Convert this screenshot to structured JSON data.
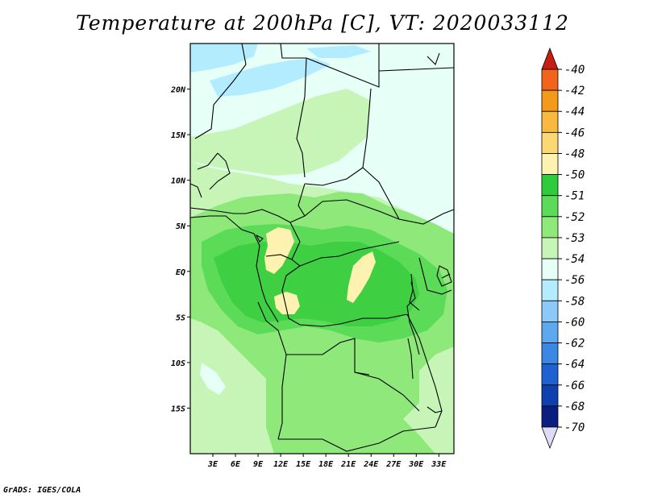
{
  "title": "Temperature at 200hPa [C], VT: 2020033112",
  "credit": "GrADS: IGES/COLA",
  "lat_labels": [
    "20N",
    "15N",
    "10N",
    "5N",
    "EQ",
    "5S",
    "10S",
    "15S"
  ],
  "lat_values": [
    20,
    15,
    10,
    5,
    0,
    -5,
    -10,
    -15
  ],
  "lon_labels": [
    "3E",
    "6E",
    "9E",
    "12E",
    "15E",
    "18E",
    "21E",
    "24E",
    "27E",
    "30E",
    "33E"
  ],
  "lon_values": [
    3,
    6,
    9,
    12,
    15,
    18,
    21,
    24,
    27,
    30,
    33
  ],
  "map_extent": {
    "lon_min": 0,
    "lon_max": 35,
    "lat_min": -20,
    "lat_max": 25
  },
  "colorbar": {
    "labels": [
      "-40",
      "-42",
      "-44",
      "-46",
      "-48",
      "-50",
      "-51",
      "-52",
      "-53",
      "-54",
      "-56",
      "-58",
      "-60",
      "-62",
      "-64",
      "-66",
      "-68",
      "-70"
    ],
    "colors": [
      "#f02a1c",
      "#f2641a",
      "#f59a18",
      "#f7ba3c",
      "#fbd874",
      "#fdf2b0",
      "#2ecb3c",
      "#5bdb58",
      "#8ee87a",
      "#c7f5b8",
      "#e6fff7",
      "#b4ecff",
      "#8cc8f8",
      "#5ea8f0",
      "#3a88e4",
      "#1e62d2",
      "#1040b0",
      "#0a1e80"
    ],
    "top_arrow": "#c81e12",
    "bottom_arrow": "#dcdcf6"
  },
  "palette": {
    "ocean_light": "#e6fff7",
    "band_54": "#c7f5b8",
    "band_53": "#8ee87a",
    "band_52": "#5bdb58",
    "band_51": "#3fcf42",
    "band_50": "#fdf2b0",
    "band_56": "#b4ecff",
    "band_58": "#8cc8f8"
  }
}
